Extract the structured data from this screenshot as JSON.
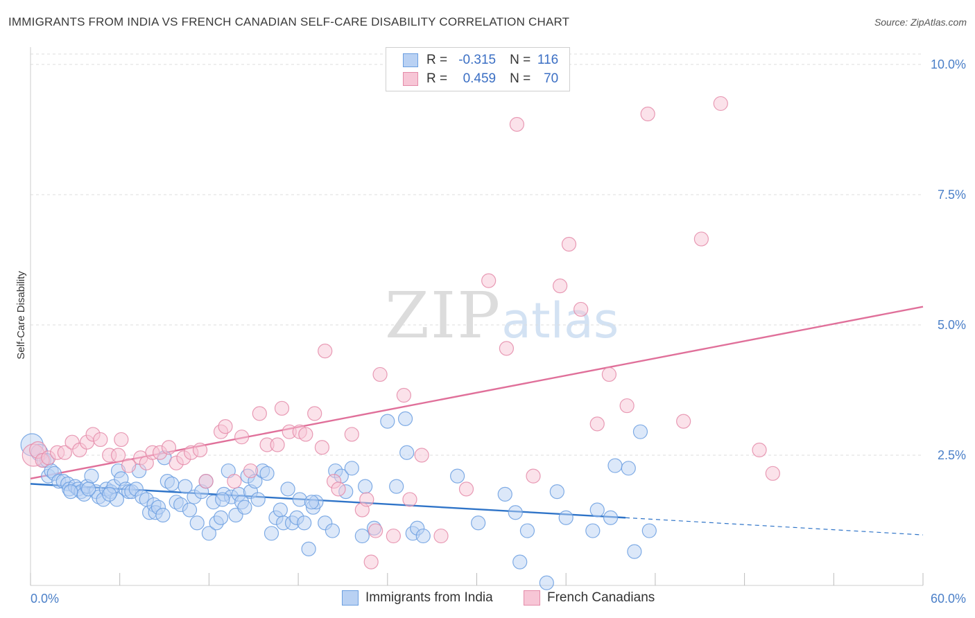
{
  "header": {
    "title": "IMMIGRANTS FROM INDIA VS FRENCH CANADIAN SELF-CARE DISABILITY CORRELATION CHART",
    "source": "Source: ZipAtlas.com"
  },
  "watermark": {
    "zip": "ZIP",
    "atlas": "atlas"
  },
  "legend": {
    "rows": [
      {
        "r_label": "R =",
        "r_value": "-0.315",
        "n_label": "N =",
        "n_value": "116",
        "color": "#6a9ee0",
        "fill": "#b9d1f3"
      },
      {
        "r_label": "R =",
        "r_value": "0.459",
        "n_label": "N =",
        "n_value": "70",
        "color": "#e48aa8",
        "fill": "#f7c6d6"
      }
    ]
  },
  "bottom_legend": [
    {
      "label": "Immigrants from India",
      "color": "#6a9ee0",
      "fill": "#b9d1f3"
    },
    {
      "label": "French Canadians",
      "color": "#e48aa8",
      "fill": "#f7c6d6"
    }
  ],
  "chart_data": {
    "type": "scatter",
    "title": "IMMIGRANTS FROM INDIA VS FRENCH CANADIAN SELF-CARE DISABILITY CORRELATION CHART",
    "xlabel": "",
    "ylabel": "Self-Care Disability",
    "xlim": [
      0,
      60
    ],
    "ylim": [
      0,
      10.2
    ],
    "x_tick_labels": [
      "0.0%",
      "60.0%"
    ],
    "y_ticks": [
      2.5,
      5.0,
      7.5,
      10.0
    ],
    "y_tick_labels": [
      "2.5%",
      "5.0%",
      "7.5%",
      "10.0%"
    ],
    "grid": "horizontal dashed",
    "legend_position": "top-center",
    "series": [
      {
        "name": "Immigrants from India",
        "color": "#6a9ee0",
        "fill": "#b9d1f3",
        "trend": {
          "x": [
            0,
            40
          ],
          "y": [
            1.95,
            1.3
          ],
          "dashed_extension": {
            "x": [
              40,
              60
            ],
            "y": [
              1.3,
              0.97
            ]
          }
        },
        "points": [
          [
            0.1,
            2.7,
            16
          ],
          [
            0.6,
            2.55,
            12
          ],
          [
            0.9,
            2.4,
            10
          ],
          [
            1.1,
            2.4,
            10
          ],
          [
            1.2,
            2.1,
            10
          ],
          [
            1.4,
            2.2,
            10
          ],
          [
            1.6,
            2.15,
            10
          ],
          [
            1.9,
            2.0,
            10
          ],
          [
            2.2,
            2.0,
            10
          ],
          [
            2.5,
            1.95,
            10
          ],
          [
            2.6,
            1.85,
            10
          ],
          [
            3.0,
            1.9,
            10
          ],
          [
            3.2,
            1.85,
            10
          ],
          [
            3.4,
            1.8,
            10
          ],
          [
            3.6,
            1.75,
            10
          ],
          [
            3.8,
            1.9,
            10
          ],
          [
            4.1,
            2.1,
            10
          ],
          [
            4.4,
            1.8,
            10
          ],
          [
            4.6,
            1.7,
            10
          ],
          [
            4.9,
            1.65,
            10
          ],
          [
            5.1,
            1.85,
            10
          ],
          [
            5.4,
            1.8,
            10
          ],
          [
            5.6,
            1.9,
            10
          ],
          [
            5.8,
            1.65,
            10
          ],
          [
            5.9,
            2.2,
            10
          ],
          [
            6.1,
            2.05,
            10
          ],
          [
            6.4,
            1.85,
            10
          ],
          [
            6.6,
            1.8,
            10
          ],
          [
            6.8,
            1.8,
            10
          ],
          [
            7.1,
            1.85,
            10
          ],
          [
            7.3,
            2.2,
            10
          ],
          [
            7.5,
            1.7,
            10
          ],
          [
            7.8,
            1.65,
            10
          ],
          [
            8.0,
            1.4,
            10
          ],
          [
            8.3,
            1.55,
            10
          ],
          [
            8.4,
            1.4,
            10
          ],
          [
            8.6,
            1.5,
            10
          ],
          [
            8.9,
            1.35,
            10
          ],
          [
            9.2,
            2.0,
            10
          ],
          [
            9.5,
            1.95,
            10
          ],
          [
            9.8,
            1.6,
            10
          ],
          [
            10.1,
            1.55,
            10
          ],
          [
            10.4,
            1.9,
            10
          ],
          [
            10.7,
            1.45,
            10
          ],
          [
            11.0,
            1.7,
            10
          ],
          [
            11.2,
            1.2,
            10
          ],
          [
            11.5,
            1.8,
            10
          ],
          [
            11.8,
            2.0,
            10
          ],
          [
            12.0,
            1.0,
            10
          ],
          [
            12.3,
            1.6,
            10
          ],
          [
            12.5,
            1.2,
            10
          ],
          [
            12.8,
            1.3,
            10
          ],
          [
            13.0,
            1.75,
            10
          ],
          [
            13.3,
            2.2,
            10
          ],
          [
            13.5,
            1.7,
            10
          ],
          [
            13.8,
            1.35,
            10
          ],
          [
            14.0,
            1.75,
            10
          ],
          [
            14.2,
            1.6,
            10
          ],
          [
            14.4,
            1.5,
            10
          ],
          [
            14.6,
            2.1,
            10
          ],
          [
            14.8,
            1.8,
            10
          ],
          [
            15.1,
            2.0,
            10
          ],
          [
            15.3,
            1.65,
            10
          ],
          [
            15.6,
            2.2,
            10
          ],
          [
            15.9,
            2.15,
            10
          ],
          [
            16.2,
            1.0,
            10
          ],
          [
            16.5,
            1.3,
            10
          ],
          [
            16.8,
            1.45,
            10
          ],
          [
            17.0,
            1.2,
            10
          ],
          [
            17.3,
            1.85,
            10
          ],
          [
            17.6,
            1.2,
            10
          ],
          [
            17.9,
            1.3,
            10
          ],
          [
            18.1,
            1.65,
            10
          ],
          [
            18.4,
            1.2,
            10
          ],
          [
            18.7,
            0.7,
            10
          ],
          [
            19.0,
            1.5,
            10
          ],
          [
            19.2,
            1.6,
            10
          ],
          [
            19.8,
            1.2,
            10
          ],
          [
            20.3,
            1.05,
            10
          ],
          [
            20.5,
            2.2,
            10
          ],
          [
            20.9,
            2.1,
            10
          ],
          [
            21.2,
            1.8,
            10
          ],
          [
            21.6,
            2.25,
            10
          ],
          [
            22.3,
            0.95,
            10
          ],
          [
            22.5,
            1.9,
            10
          ],
          [
            23.1,
            1.1,
            10
          ],
          [
            24.0,
            3.15,
            10
          ],
          [
            24.6,
            1.9,
            10
          ],
          [
            25.3,
            2.55,
            10
          ],
          [
            25.7,
            1.0,
            10
          ],
          [
            26.0,
            1.1,
            10
          ],
          [
            26.4,
            0.95,
            10
          ],
          [
            28.7,
            2.1,
            10
          ],
          [
            30.1,
            1.2,
            10
          ],
          [
            31.9,
            1.75,
            10
          ],
          [
            32.6,
            1.4,
            10
          ],
          [
            32.9,
            0.45,
            10
          ],
          [
            33.4,
            1.05,
            10
          ],
          [
            34.7,
            0.05,
            10
          ],
          [
            35.4,
            1.8,
            10
          ],
          [
            36.0,
            1.3,
            10
          ],
          [
            37.8,
            1.05,
            10
          ],
          [
            38.1,
            1.45,
            10
          ],
          [
            39.0,
            1.3,
            10
          ],
          [
            39.3,
            2.3,
            10
          ],
          [
            40.2,
            2.25,
            10
          ],
          [
            40.6,
            0.65,
            10
          ],
          [
            41.0,
            2.95,
            10
          ],
          [
            41.6,
            1.05,
            10
          ],
          [
            25.2,
            3.2,
            10
          ],
          [
            2.7,
            1.8,
            10
          ],
          [
            5.3,
            1.75,
            10
          ],
          [
            9.0,
            2.45,
            10
          ],
          [
            18.9,
            1.6,
            10
          ],
          [
            12.9,
            1.65,
            10
          ],
          [
            3.9,
            1.85,
            10
          ]
        ]
      },
      {
        "name": "French Canadians",
        "color": "#e48aa8",
        "fill": "#f7c6d6",
        "trend": {
          "x": [
            0,
            60
          ],
          "y": [
            2.05,
            5.35
          ]
        },
        "points": [
          [
            0.2,
            2.5,
            16
          ],
          [
            0.5,
            2.6,
            12
          ],
          [
            0.8,
            2.4,
            10
          ],
          [
            1.2,
            2.45,
            10
          ],
          [
            1.8,
            2.55,
            10
          ],
          [
            2.3,
            2.55,
            10
          ],
          [
            2.8,
            2.75,
            10
          ],
          [
            3.3,
            2.6,
            10
          ],
          [
            3.8,
            2.75,
            10
          ],
          [
            4.2,
            2.9,
            10
          ],
          [
            4.7,
            2.8,
            10
          ],
          [
            5.3,
            2.5,
            10
          ],
          [
            5.9,
            2.5,
            10
          ],
          [
            6.1,
            2.8,
            10
          ],
          [
            6.6,
            2.3,
            10
          ],
          [
            7.4,
            2.45,
            10
          ],
          [
            7.8,
            2.35,
            10
          ],
          [
            8.2,
            2.55,
            10
          ],
          [
            8.7,
            2.55,
            10
          ],
          [
            9.3,
            2.65,
            10
          ],
          [
            9.8,
            2.35,
            10
          ],
          [
            10.3,
            2.45,
            10
          ],
          [
            10.8,
            2.55,
            10
          ],
          [
            11.4,
            2.6,
            10
          ],
          [
            11.8,
            2.0,
            10
          ],
          [
            12.8,
            2.95,
            10
          ],
          [
            13.1,
            3.05,
            10
          ],
          [
            13.7,
            2.0,
            10
          ],
          [
            14.2,
            2.85,
            10
          ],
          [
            14.8,
            2.2,
            10
          ],
          [
            15.4,
            3.3,
            10
          ],
          [
            15.9,
            2.7,
            10
          ],
          [
            16.6,
            2.7,
            10
          ],
          [
            16.9,
            3.4,
            10
          ],
          [
            17.4,
            2.95,
            10
          ],
          [
            18.1,
            2.95,
            10
          ],
          [
            18.5,
            2.9,
            10
          ],
          [
            19.1,
            3.3,
            10
          ],
          [
            19.6,
            2.65,
            10
          ],
          [
            19.8,
            4.5,
            10
          ],
          [
            20.4,
            2.0,
            10
          ],
          [
            20.7,
            1.85,
            10
          ],
          [
            21.6,
            2.9,
            10
          ],
          [
            22.3,
            1.45,
            10
          ],
          [
            22.6,
            1.65,
            10
          ],
          [
            22.9,
            0.45,
            10
          ],
          [
            23.2,
            1.05,
            10
          ],
          [
            23.5,
            4.05,
            10
          ],
          [
            24.4,
            0.95,
            10
          ],
          [
            25.1,
            3.65,
            10
          ],
          [
            25.5,
            1.65,
            10
          ],
          [
            26.3,
            2.5,
            10
          ],
          [
            27.6,
            0.95,
            10
          ],
          [
            29.3,
            1.85,
            10
          ],
          [
            30.8,
            5.85,
            10
          ],
          [
            32.0,
            4.55,
            10
          ],
          [
            32.7,
            8.85,
            10
          ],
          [
            33.8,
            2.1,
            10
          ],
          [
            35.6,
            5.75,
            10
          ],
          [
            36.2,
            6.55,
            10
          ],
          [
            37.0,
            5.3,
            10
          ],
          [
            38.1,
            3.1,
            10
          ],
          [
            38.9,
            4.05,
            10
          ],
          [
            40.1,
            3.45,
            10
          ],
          [
            41.5,
            9.05,
            10
          ],
          [
            43.9,
            3.15,
            10
          ],
          [
            45.1,
            6.65,
            10
          ],
          [
            46.4,
            9.25,
            10
          ],
          [
            49.0,
            2.6,
            10
          ],
          [
            49.9,
            2.15,
            10
          ]
        ]
      }
    ]
  }
}
